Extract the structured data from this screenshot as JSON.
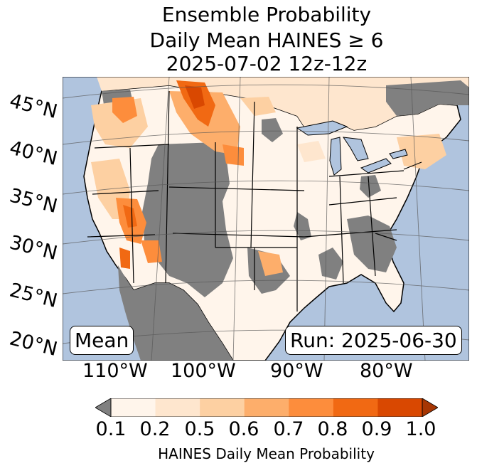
{
  "title": {
    "line1": "Ensemble Probability",
    "line2": "Daily Mean HAINES ≥ 6",
    "line3": "2025-07-02 12z-12z"
  },
  "map": {
    "lat_labels": [
      "45°N",
      "40°N",
      "35°N",
      "30°N",
      "25°N",
      "20°N"
    ],
    "lon_labels": [
      "110°W",
      "100°W",
      "90°W",
      "80°W"
    ],
    "left_box": "Mean",
    "right_box": "Run: 2025-06-30",
    "colors": {
      "ocean": "#b0c4de",
      "masked_land": "#808080",
      "border": "#000000"
    }
  },
  "colorbar": {
    "ticks": [
      "0.1",
      "0.2",
      "0.5",
      "0.6",
      "0.7",
      "0.8",
      "0.9",
      "1.0"
    ],
    "colors": [
      "#fff5eb",
      "#fee6ce",
      "#fdd0a2",
      "#fdae6b",
      "#fd8d3c",
      "#f16913",
      "#d94801",
      "#a63603"
    ],
    "under_color": "#808080",
    "label": "HAINES Daily Mean Probability"
  }
}
